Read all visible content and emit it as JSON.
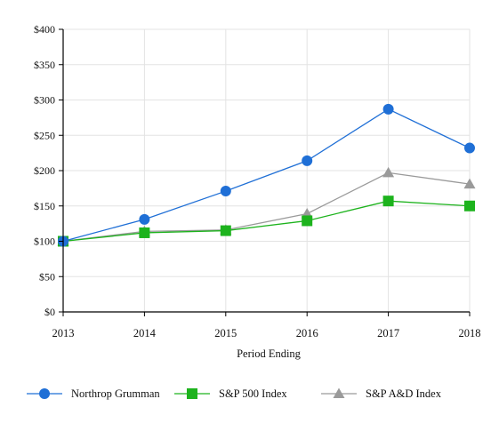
{
  "chart_data": {
    "type": "line",
    "title": "",
    "xlabel": "Period Ending",
    "ylabel": "",
    "categories": [
      "2013",
      "2014",
      "2015",
      "2016",
      "2017",
      "2018"
    ],
    "y_ticks": [
      0,
      50,
      100,
      150,
      200,
      250,
      300,
      350,
      400
    ],
    "y_tick_labels": [
      "$0",
      "$50",
      "$100",
      "$150",
      "$200",
      "$250",
      "$300",
      "$350",
      "$400"
    ],
    "ylim": [
      0,
      400
    ],
    "grid": "vertical and horizontal",
    "legend_position": "bottom",
    "series": [
      {
        "name": "Northrop Grumman",
        "values": [
          100,
          131,
          171,
          214,
          287,
          232
        ],
        "color": "#1f6fd6",
        "marker": "circle"
      },
      {
        "name": "S&P 500 Index",
        "values": [
          100,
          112,
          115,
          129,
          157,
          150
        ],
        "color": "#1db31d",
        "marker": "square"
      },
      {
        "name": "S&P A&D Index",
        "values": [
          100,
          114,
          116,
          139,
          197,
          181
        ],
        "color": "#9a9a9a",
        "marker": "triangle"
      }
    ]
  }
}
